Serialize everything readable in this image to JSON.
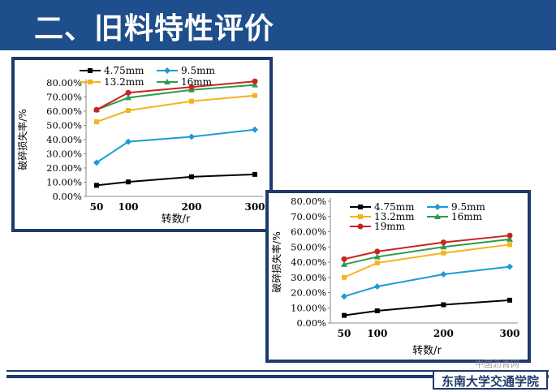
{
  "slide": {
    "title": "二、旧料特性评价",
    "school": "东南大学交通学院",
    "watermark": "中国沥青网"
  },
  "chart_data": [
    {
      "type": "line",
      "title": "",
      "xlabel": "转数/r",
      "ylabel": "破碎损失率/%",
      "x": [
        50,
        100,
        200,
        300
      ],
      "x_ticks": [
        "50",
        "100",
        "200",
        "300"
      ],
      "y_ticks": [
        "0.00%",
        "10.00%",
        "20.00%",
        "30.00%",
        "40.00%",
        "50.00%",
        "60.00%",
        "70.00%",
        "80.00%"
      ],
      "ylim": [
        0,
        80
      ],
      "grid": false,
      "legend_position": "top",
      "series": [
        {
          "name": "4.75mm",
          "color": "#000000",
          "marker": "square",
          "values": [
            7.8,
            10.2,
            13.8,
            15.5
          ]
        },
        {
          "name": "9.5mm",
          "color": "#1e9bd7",
          "marker": "diamond",
          "values": [
            23.8,
            38.5,
            42.0,
            47.0
          ]
        },
        {
          "name": "13.2mm",
          "color": "#f5b31c",
          "marker": "square",
          "values": [
            52.5,
            60.5,
            67.0,
            71.0
          ]
        },
        {
          "name": "16mm",
          "color": "#2a9d4a",
          "marker": "triangle",
          "values": [
            61.0,
            69.5,
            75.0,
            78.5
          ]
        },
        {
          "name": "",
          "color": "#cc2222",
          "marker": "circle",
          "values": [
            61.0,
            73.0,
            77.0,
            81.0
          ]
        }
      ]
    },
    {
      "type": "line",
      "title": "",
      "xlabel": "转数/r",
      "ylabel": "破碎损失率/%",
      "x": [
        50,
        100,
        200,
        300
      ],
      "x_ticks": [
        "50",
        "100",
        "200",
        "300"
      ],
      "y_ticks": [
        "0.00%",
        "10.00%",
        "20.00%",
        "30.00%",
        "40.00%",
        "50.00%",
        "60.00%",
        "70.00%",
        "80.00%"
      ],
      "ylim": [
        0,
        80
      ],
      "grid": false,
      "legend_position": "top",
      "series": [
        {
          "name": "4.75mm",
          "color": "#000000",
          "marker": "square",
          "values": [
            5.0,
            8.0,
            12.0,
            15.0
          ]
        },
        {
          "name": "9.5mm",
          "color": "#1e9bd7",
          "marker": "diamond",
          "values": [
            17.5,
            24.0,
            32.0,
            37.0
          ]
        },
        {
          "name": "13.2mm",
          "color": "#f5b31c",
          "marker": "square",
          "values": [
            30.0,
            39.5,
            46.0,
            51.5
          ]
        },
        {
          "name": "16mm",
          "color": "#2a9d4a",
          "marker": "triangle",
          "values": [
            38.5,
            43.5,
            50.0,
            55.0
          ]
        },
        {
          "name": "19mm",
          "color": "#cc2222",
          "marker": "circle",
          "values": [
            42.0,
            47.0,
            53.0,
            57.5
          ]
        }
      ]
    }
  ]
}
